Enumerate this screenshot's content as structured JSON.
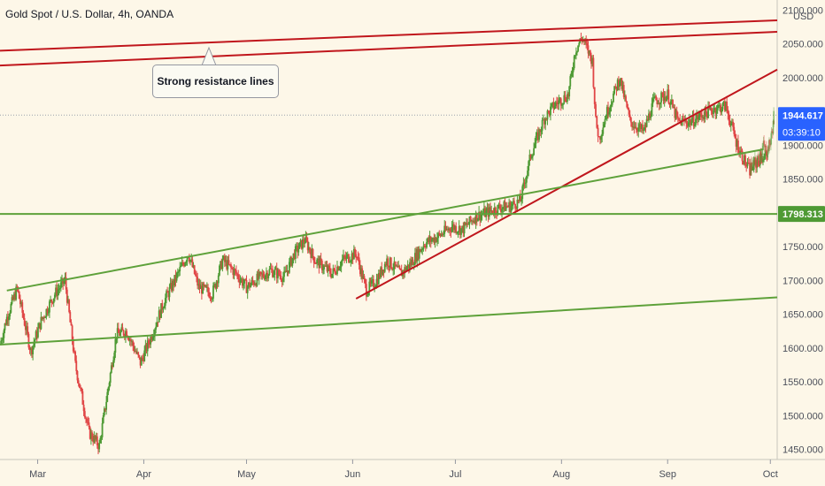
{
  "chart_title": "Gold Spot / U.S. Dollar, 4h, OANDA",
  "annotation": "Strong resistance lines",
  "currency": "USD",
  "price_tag": {
    "value": "1944.617",
    "countdown": "03:39:10",
    "color": "#2962ff"
  },
  "level_tag": {
    "value": "1798.313",
    "color": "#4e9a34"
  },
  "colors": {
    "up": "#4e9a34",
    "down": "#e04646",
    "resistance": "#c0161c",
    "support": "#5ea13a",
    "bg": "#fdf7e8"
  },
  "chart_data": {
    "type": "candlestick",
    "instrument": "Gold Spot / U.S. Dollar",
    "timeframe": "4h",
    "x_ticks": [
      "Mar",
      "Apr",
      "May",
      "Jun",
      "Jul",
      "Aug",
      "Sep",
      "Oct"
    ],
    "x_range": [
      "2020-02-19",
      "2020-10-03"
    ],
    "y_ticks": [
      1450,
      1500,
      1550,
      1600,
      1650,
      1700,
      1750,
      1800,
      1850,
      1900,
      1950,
      2000,
      2050,
      2100
    ],
    "y_range": [
      1435,
      2115
    ],
    "last_price": 1944.617,
    "horizontal_level": 1798.313,
    "series": [
      {
        "points": [
          [
            "2020-02-19",
            1605
          ],
          [
            "2020-02-21",
            1645
          ],
          [
            "2020-02-24",
            1688
          ],
          [
            "2020-02-28",
            1595
          ],
          [
            "2020-03-02",
            1640
          ],
          [
            "2020-03-06",
            1680
          ],
          [
            "2020-03-09",
            1700
          ],
          [
            "2020-03-12",
            1575
          ],
          [
            "2020-03-16",
            1475
          ],
          [
            "2020-03-19",
            1455
          ],
          [
            "2020-03-24",
            1620
          ],
          [
            "2020-03-27",
            1625
          ],
          [
            "2020-03-31",
            1578
          ],
          [
            "2020-04-03",
            1615
          ],
          [
            "2020-04-07",
            1670
          ],
          [
            "2020-04-10",
            1700
          ],
          [
            "2020-04-14",
            1740
          ],
          [
            "2020-04-17",
            1690
          ],
          [
            "2020-04-21",
            1680
          ],
          [
            "2020-04-24",
            1730
          ],
          [
            "2020-04-28",
            1710
          ],
          [
            "2020-05-01",
            1690
          ],
          [
            "2020-05-05",
            1705
          ],
          [
            "2020-05-08",
            1715
          ],
          [
            "2020-05-12",
            1705
          ],
          [
            "2020-05-15",
            1740
          ],
          [
            "2020-05-18",
            1760
          ],
          [
            "2020-05-21",
            1730
          ],
          [
            "2020-05-26",
            1710
          ],
          [
            "2020-05-29",
            1730
          ],
          [
            "2020-06-02",
            1740
          ],
          [
            "2020-06-05",
            1685
          ],
          [
            "2020-06-08",
            1700
          ],
          [
            "2020-06-11",
            1730
          ],
          [
            "2020-06-15",
            1710
          ],
          [
            "2020-06-18",
            1725
          ],
          [
            "2020-06-22",
            1755
          ],
          [
            "2020-06-26",
            1765
          ],
          [
            "2020-06-30",
            1780
          ],
          [
            "2020-07-03",
            1775
          ],
          [
            "2020-07-07",
            1795
          ],
          [
            "2020-07-10",
            1800
          ],
          [
            "2020-07-14",
            1808
          ],
          [
            "2020-07-17",
            1810
          ],
          [
            "2020-07-20",
            1818
          ],
          [
            "2020-07-23",
            1885
          ],
          [
            "2020-07-27",
            1940
          ],
          [
            "2020-07-30",
            1960
          ],
          [
            "2020-08-03",
            1975
          ],
          [
            "2020-08-05",
            2040
          ],
          [
            "2020-08-07",
            2060
          ],
          [
            "2020-08-10",
            2025
          ],
          [
            "2020-08-11",
            1935
          ],
          [
            "2020-08-12",
            1910
          ],
          [
            "2020-08-14",
            1945
          ],
          [
            "2020-08-18",
            2000
          ],
          [
            "2020-08-21",
            1935
          ],
          [
            "2020-08-25",
            1920
          ],
          [
            "2020-08-28",
            1965
          ],
          [
            "2020-09-01",
            1975
          ],
          [
            "2020-09-04",
            1935
          ],
          [
            "2020-09-08",
            1935
          ],
          [
            "2020-09-11",
            1945
          ],
          [
            "2020-09-15",
            1955
          ],
          [
            "2020-09-18",
            1958
          ],
          [
            "2020-09-21",
            1905
          ],
          [
            "2020-09-24",
            1870
          ],
          [
            "2020-09-25",
            1862
          ],
          [
            "2020-09-28",
            1880
          ],
          [
            "2020-09-30",
            1885
          ]
        ]
      },
      {
        "name": "",
        "points": [
          [
            "2020-09-25",
            1866
          ],
          [
            "2020-09-28",
            1882
          ],
          [
            "2020-09-29",
            1900
          ],
          [
            "2020-09-30",
            1890
          ],
          [
            "2020-10-01",
            1905
          ],
          [
            "2020-10-02",
            1935
          ],
          [
            "2020-10-02",
            1945
          ]
        ]
      }
    ],
    "trendlines": [
      {
        "color": "resistance",
        "from": [
          "2020-02-19",
          2040
        ],
        "to": [
          "2020-10-03",
          2085
        ]
      },
      {
        "color": "resistance",
        "from": [
          "2020-02-19",
          2018
        ],
        "to": [
          "2020-10-03",
          2068
        ]
      },
      {
        "color": "resistance",
        "from": [
          "2020-06-02",
          1673
        ],
        "to": [
          "2020-10-03",
          2012
        ]
      },
      {
        "color": "support",
        "from": [
          "2020-02-21",
          1685
        ],
        "to": [
          "2020-09-29",
          1894
        ]
      },
      {
        "color": "support",
        "from": [
          "2020-02-19",
          1605
        ],
        "to": [
          "2020-10-03",
          1675
        ]
      }
    ]
  }
}
